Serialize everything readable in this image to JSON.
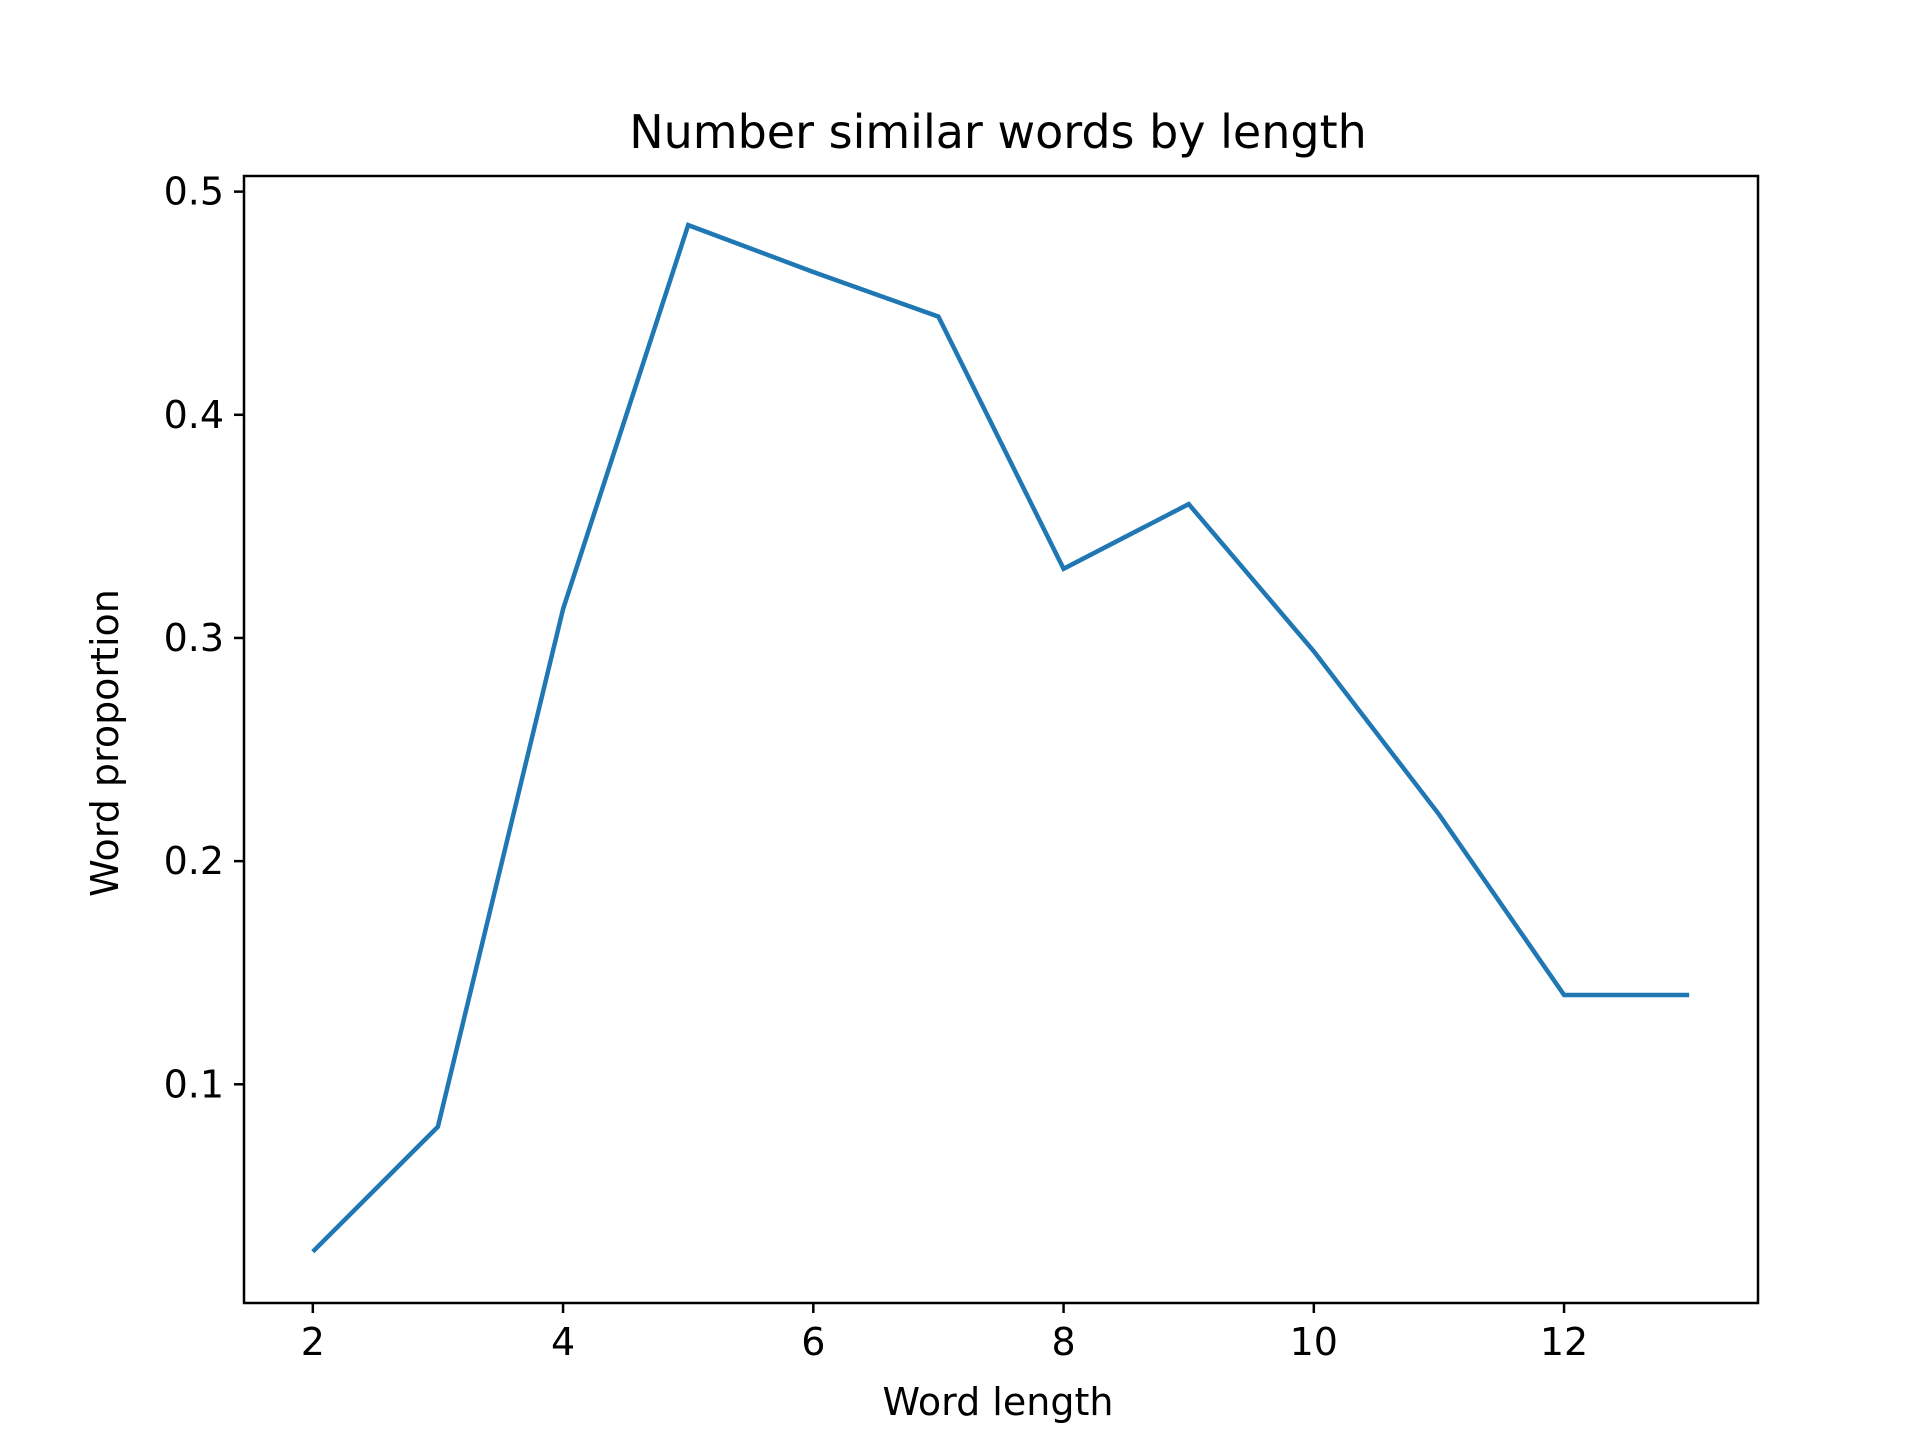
{
  "chart_data": {
    "type": "line",
    "title": "Number similar words by length",
    "xlabel": "Word length",
    "ylabel": "Word proportion",
    "xlim": [
      1.45,
      13.55
    ],
    "ylim": [
      0.002,
      0.507
    ],
    "xticks": [
      2,
      4,
      6,
      8,
      10,
      12
    ],
    "xtick_labels": [
      "2",
      "4",
      "6",
      "8",
      "10",
      "12"
    ],
    "yticks": [
      0.1,
      0.2,
      0.3,
      0.4,
      0.5
    ],
    "ytick_labels": [
      "0.1",
      "0.2",
      "0.3",
      "0.4",
      "0.5"
    ],
    "grid": false,
    "legend": false,
    "series": [
      {
        "color": "#1f77b4",
        "x": [
          2,
          3,
          4,
          5,
          6,
          7,
          8,
          9,
          10,
          11,
          12,
          13
        ],
        "y": [
          0.025,
          0.081,
          0.313,
          0.485,
          0.464,
          0.444,
          0.331,
          0.36,
          0.294,
          0.221,
          0.14,
          0.14
        ]
      }
    ]
  }
}
